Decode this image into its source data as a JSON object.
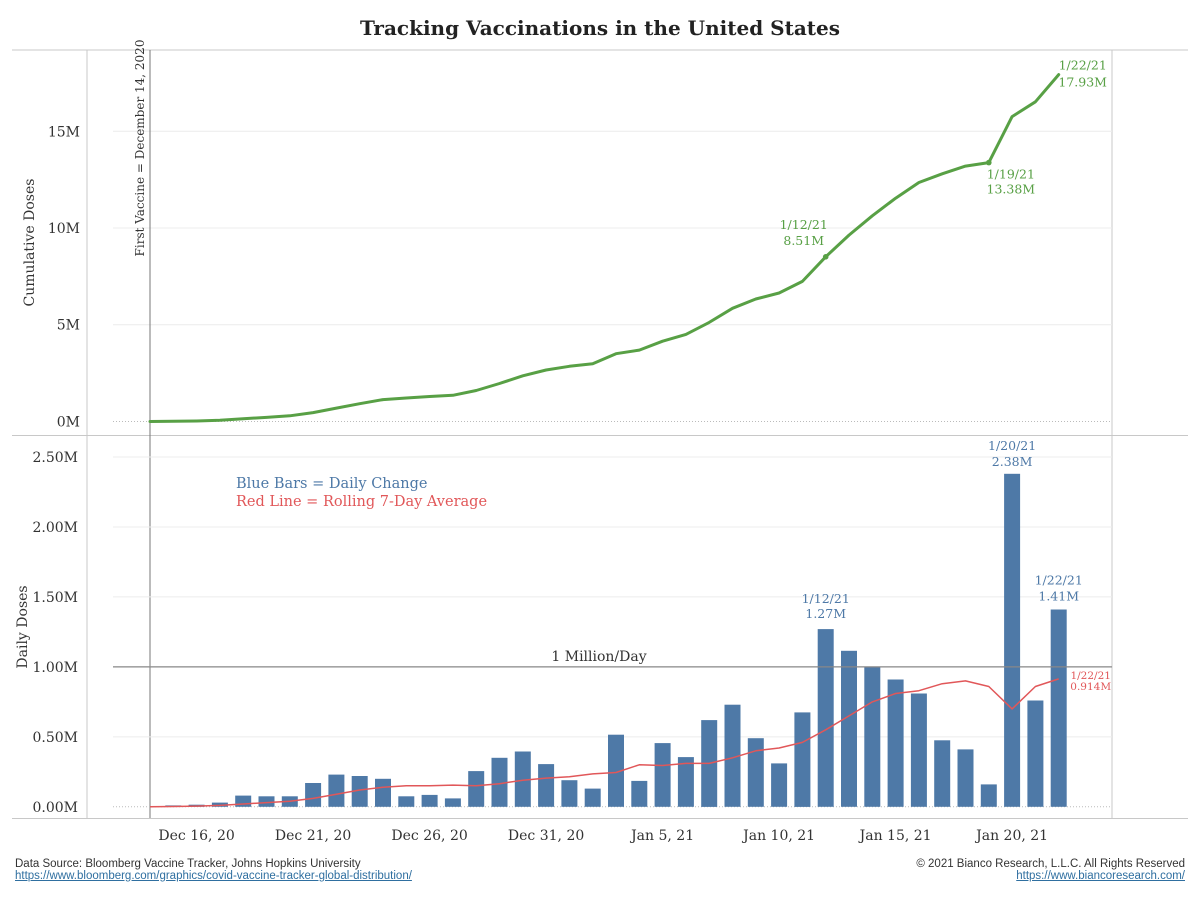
{
  "title": "Tracking Vaccinations in the United States",
  "footer": {
    "source_text": "Data Source: Bloomberg Vaccine Tracker, Johns Hopkins University",
    "source_url": "https://www.bloomberg.com/graphics/covid-vaccine-tracker-global-distribution/",
    "copyright": "© 2021 Bianco Research, L.L.C. All Rights Reserved",
    "site_url": "https://www.biancoresearch.com/"
  },
  "colors": {
    "green": "#58a045",
    "blue": "#4e79a7",
    "red": "#e15759",
    "ref": "#555555"
  },
  "chart_data": [
    {
      "type": "line",
      "ylabel": "Cumulative Doses",
      "ylim": [
        -700000,
        19200000
      ],
      "yticks": [
        0,
        5000000,
        10000000,
        15000000
      ],
      "ytick_labels": [
        "0M",
        "5M",
        "10M",
        "15M"
      ],
      "reference_vertical": {
        "date": "2020-12-14",
        "label": "First Vaccine = December 14, 2020"
      },
      "series": [
        {
          "color": "#58a045",
          "x": [
            "2020-12-14",
            "2020-12-15",
            "2020-12-16",
            "2020-12-17",
            "2020-12-18",
            "2020-12-19",
            "2020-12-20",
            "2020-12-21",
            "2020-12-22",
            "2020-12-23",
            "2020-12-24",
            "2020-12-25",
            "2020-12-26",
            "2020-12-27",
            "2020-12-28",
            "2020-12-29",
            "2020-12-30",
            "2020-12-31",
            "2021-01-01",
            "2021-01-02",
            "2021-01-03",
            "2021-01-04",
            "2021-01-05",
            "2021-01-06",
            "2021-01-07",
            "2021-01-08",
            "2021-01-09",
            "2021-01-10",
            "2021-01-11",
            "2021-01-12",
            "2021-01-13",
            "2021-01-14",
            "2021-01-15",
            "2021-01-16",
            "2021-01-17",
            "2021-01-18",
            "2021-01-19",
            "2021-01-20",
            "2021-01-21",
            "2021-01-22"
          ],
          "values": [
            0,
            10000,
            25000,
            60000,
            140000,
            210000,
            290000,
            460000,
            690000,
            920000,
            1130000,
            1210000,
            1290000,
            1350000,
            1600000,
            1960000,
            2360000,
            2660000,
            2850000,
            2980000,
            3500000,
            3690000,
            4150000,
            4500000,
            5120000,
            5850000,
            6330000,
            6640000,
            7240000,
            8510000,
            9630000,
            10630000,
            11540000,
            12350000,
            12800000,
            13200000,
            13380000,
            15760000,
            16520000,
            17930000
          ]
        }
      ],
      "annotations": [
        {
          "x": "2021-01-12",
          "date": "1/12/21",
          "value": "8.51M"
        },
        {
          "x": "2021-01-19",
          "date": "1/19/21",
          "value": "13.38M"
        },
        {
          "x": "2021-01-22",
          "date": "1/22/21",
          "value": "17.93M"
        }
      ]
    },
    {
      "type": "bar",
      "ylabel": "Daily Doses",
      "ylim": [
        -80000,
        2650000
      ],
      "yticks": [
        0,
        500000,
        1000000,
        1500000,
        2000000,
        2500000
      ],
      "ytick_labels": [
        "0.00M",
        "0.50M",
        "1.00M",
        "1.50M",
        "2.00M",
        "2.50M"
      ],
      "xticks": [
        "2020-12-16",
        "2020-12-21",
        "2020-12-26",
        "2020-12-31",
        "2021-01-05",
        "2021-01-10",
        "2021-01-15",
        "2021-01-20"
      ],
      "xtick_labels": [
        "Dec 16, 20",
        "Dec 21, 20",
        "Dec 26, 20",
        "Dec 31, 20",
        "Jan 5, 21",
        "Jan 10, 21",
        "Jan 15, 21",
        "Jan 20, 21"
      ],
      "reference_line": {
        "value": 1000000,
        "label": "1 Million/Day"
      },
      "legend": {
        "blue_text": "Blue Bars = Daily Change",
        "red_text": "Red Line = Rolling 7-Day Average"
      },
      "series": [
        {
          "kind": "bar",
          "color": "#4e79a7",
          "x": [
            "2020-12-15",
            "2020-12-16",
            "2020-12-17",
            "2020-12-18",
            "2020-12-19",
            "2020-12-20",
            "2020-12-21",
            "2020-12-22",
            "2020-12-23",
            "2020-12-24",
            "2020-12-25",
            "2020-12-26",
            "2020-12-27",
            "2020-12-28",
            "2020-12-29",
            "2020-12-30",
            "2020-12-31",
            "2021-01-01",
            "2021-01-02",
            "2021-01-03",
            "2021-01-04",
            "2021-01-05",
            "2021-01-06",
            "2021-01-07",
            "2021-01-08",
            "2021-01-09",
            "2021-01-10",
            "2021-01-11",
            "2021-01-12",
            "2021-01-13",
            "2021-01-14",
            "2021-01-15",
            "2021-01-16",
            "2021-01-17",
            "2021-01-18",
            "2021-01-19",
            "2021-01-20",
            "2021-01-21",
            "2021-01-22"
          ],
          "values": [
            10000,
            15000,
            30000,
            80000,
            75000,
            75000,
            170000,
            230000,
            220000,
            200000,
            75000,
            85000,
            60000,
            255000,
            350000,
            395000,
            305000,
            190000,
            130000,
            515000,
            185000,
            455000,
            355000,
            620000,
            730000,
            490000,
            310000,
            675000,
            1270000,
            1115000,
            1000000,
            910000,
            810000,
            475000,
            410000,
            160000,
            2380000,
            760000,
            1410000
          ]
        },
        {
          "kind": "line",
          "color": "#e15759",
          "x": [
            "2020-12-14",
            "2020-12-15",
            "2020-12-16",
            "2020-12-17",
            "2020-12-18",
            "2020-12-19",
            "2020-12-20",
            "2020-12-21",
            "2020-12-22",
            "2020-12-23",
            "2020-12-24",
            "2020-12-25",
            "2020-12-26",
            "2020-12-27",
            "2020-12-28",
            "2020-12-29",
            "2020-12-30",
            "2020-12-31",
            "2021-01-01",
            "2021-01-02",
            "2021-01-03",
            "2021-01-04",
            "2021-01-05",
            "2021-01-06",
            "2021-01-07",
            "2021-01-08",
            "2021-01-09",
            "2021-01-10",
            "2021-01-11",
            "2021-01-12",
            "2021-01-13",
            "2021-01-14",
            "2021-01-15",
            "2021-01-16",
            "2021-01-17",
            "2021-01-18",
            "2021-01-19",
            "2021-01-20",
            "2021-01-21",
            "2021-01-22"
          ],
          "values": [
            0,
            2000,
            5000,
            10000,
            20000,
            30000,
            40000,
            60000,
            90000,
            120000,
            140000,
            150000,
            150000,
            155000,
            150000,
            165000,
            190000,
            205000,
            215000,
            235000,
            245000,
            300000,
            295000,
            310000,
            310000,
            350000,
            400000,
            420000,
            460000,
            550000,
            650000,
            750000,
            810000,
            830000,
            880000,
            900000,
            860000,
            700000,
            860000,
            914000
          ]
        }
      ],
      "annotations": [
        {
          "x": "2021-01-12",
          "date": "1/12/21",
          "value": "1.27M",
          "series": "bar"
        },
        {
          "x": "2021-01-20",
          "date": "1/20/21",
          "value": "2.38M",
          "series": "bar"
        },
        {
          "x": "2021-01-22",
          "date": "1/22/21",
          "value": "1.41M",
          "series": "bar"
        },
        {
          "x": "2021-01-22",
          "date": "1/22/21",
          "value": "0.914M",
          "series": "line"
        }
      ]
    }
  ]
}
